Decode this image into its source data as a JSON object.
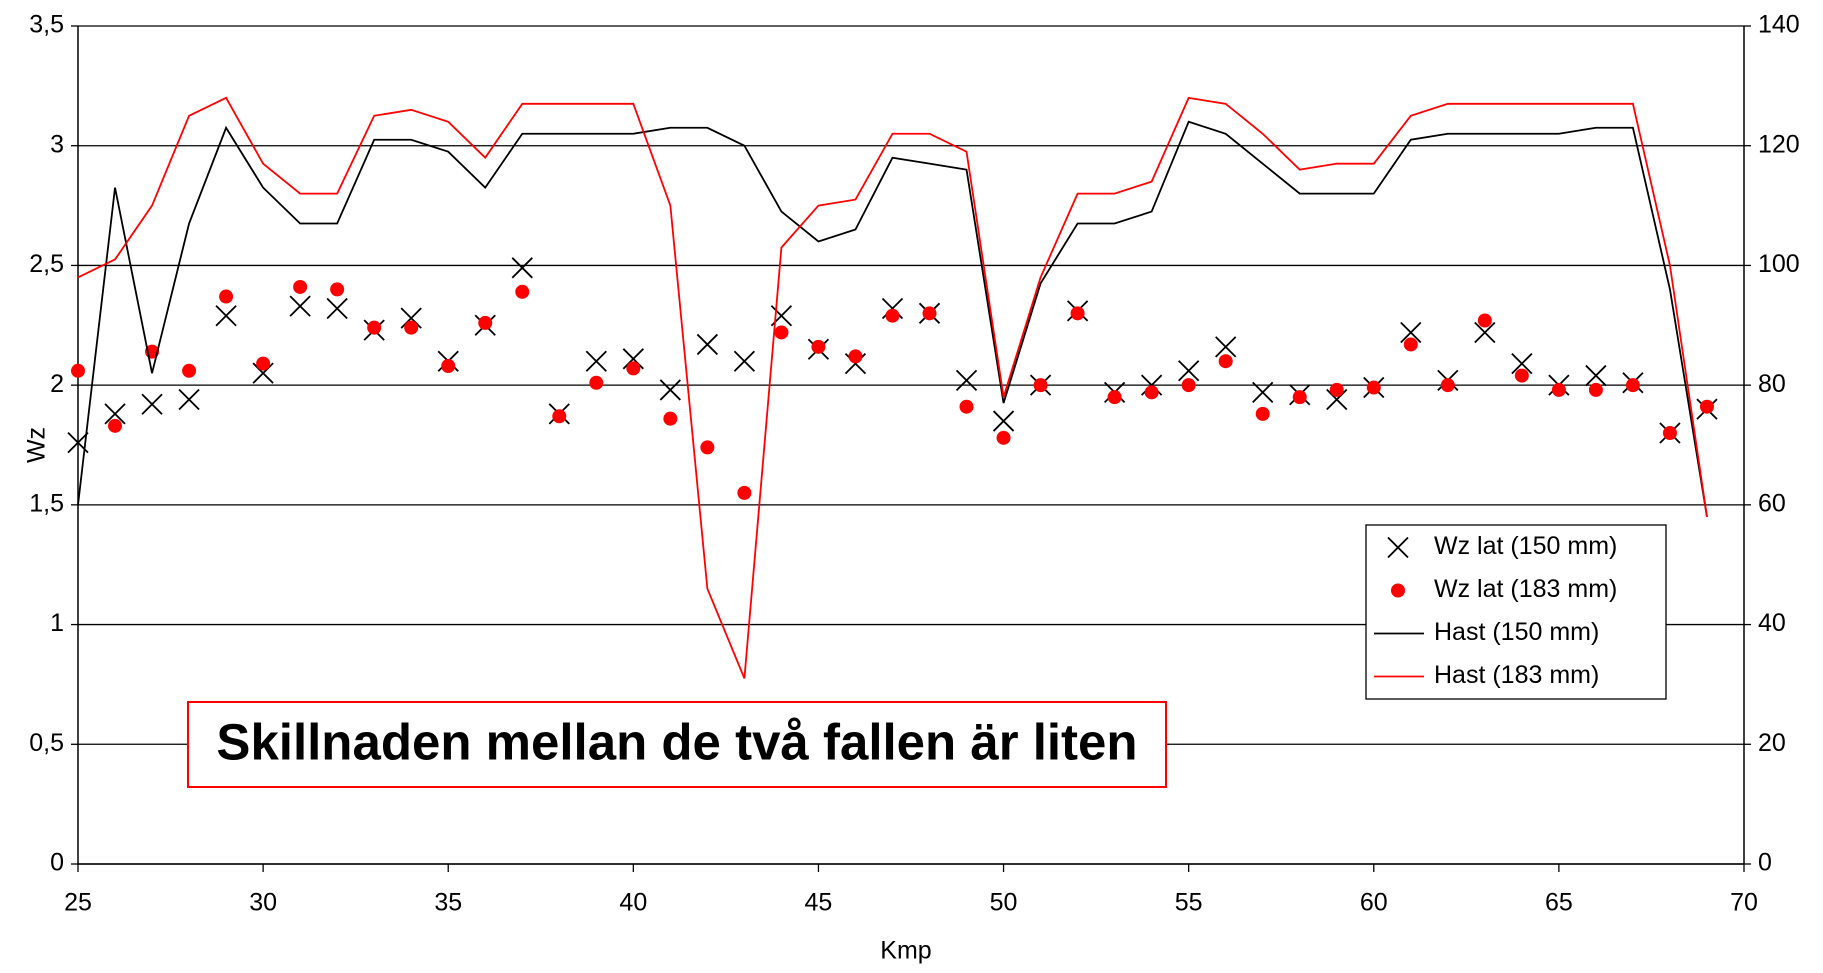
{
  "chart_data": {
    "type": "line",
    "annotation": "Skillnaden mellan de två fallen är liten",
    "xlabel": "Kmp",
    "ylabel": "Wz",
    "x": [
      25,
      26,
      27,
      28,
      29,
      30,
      31,
      32,
      33,
      34,
      35,
      36,
      37,
      38,
      39,
      40,
      41,
      42,
      43,
      44,
      45,
      46,
      47,
      48,
      49,
      50,
      51,
      52,
      53,
      54,
      55,
      56,
      57,
      58,
      59,
      60,
      61,
      62,
      63,
      64,
      65,
      66,
      67,
      68,
      69
    ],
    "series": [
      {
        "name": "Wz lat (150 mm)",
        "color": "#000000",
        "marker": "x",
        "values": [
          1.76,
          1.88,
          1.92,
          1.94,
          2.29,
          2.05,
          2.33,
          2.32,
          2.23,
          2.28,
          2.1,
          2.25,
          2.49,
          1.88,
          2.1,
          2.11,
          1.98,
          2.17,
          2.1,
          2.29,
          2.15,
          2.09,
          2.32,
          2.3,
          2.02,
          1.85,
          2.0,
          2.31,
          1.97,
          2.0,
          2.06,
          2.16,
          1.97,
          1.96,
          1.94,
          1.99,
          2.22,
          2.02,
          2.22,
          2.09,
          2.0,
          2.04,
          2.01,
          1.8,
          1.9
        ]
      },
      {
        "name": "Wz lat (183 mm)",
        "color": "#ff0000",
        "marker": "o",
        "values": [
          2.06,
          1.83,
          2.14,
          2.06,
          2.37,
          2.09,
          2.41,
          2.4,
          2.24,
          2.24,
          2.08,
          2.26,
          2.39,
          1.87,
          2.01,
          2.07,
          1.86,
          1.74,
          1.55,
          2.22,
          2.16,
          2.12,
          2.29,
          2.3,
          1.91,
          1.78,
          2.0,
          2.3,
          1.95,
          1.97,
          2.0,
          2.1,
          1.88,
          1.95,
          1.98,
          1.99,
          2.17,
          2.0,
          2.27,
          2.04,
          1.98,
          1.98,
          2.0,
          1.8,
          1.91
        ]
      },
      {
        "name": "Hast (150 mm)",
        "color": "#000000",
        "axis": "y2",
        "values": [
          60,
          113,
          82,
          107,
          123,
          113,
          107,
          107,
          121,
          121,
          119,
          113,
          122,
          122,
          122,
          122,
          123,
          123,
          120,
          109,
          104,
          106,
          118,
          117,
          116,
          77,
          97,
          107,
          107,
          109,
          124,
          122,
          117,
          112,
          112,
          112,
          121,
          122,
          122,
          122,
          122,
          123,
          123,
          96,
          58
        ]
      },
      {
        "name": "Hast (183 mm)",
        "color": "#ff0000",
        "axis": "y2",
        "values": [
          98,
          101,
          110,
          125,
          128,
          117,
          112,
          112,
          125,
          126,
          124,
          118,
          127,
          127,
          127,
          127,
          110,
          46,
          31,
          103,
          110,
          111,
          122,
          122,
          119,
          78,
          98,
          112,
          112,
          114,
          128,
          127,
          122,
          116,
          117,
          117,
          125,
          127,
          127,
          127,
          127,
          127,
          127,
          100,
          58
        ]
      }
    ],
    "xlim": [
      25,
      70
    ],
    "xticks": [
      25,
      30,
      35,
      40,
      45,
      50,
      55,
      60,
      65,
      70
    ],
    "ylim": [
      0,
      3.5
    ],
    "yticks": [
      0,
      {
        "value": 0.5,
        "label": "0,5"
      },
      1,
      {
        "value": 1.5,
        "label": "1,5"
      },
      2,
      {
        "value": 2.5,
        "label": "2,5"
      },
      3,
      {
        "value": 3.5,
        "label": "3,5"
      }
    ],
    "y2lim": [
      0,
      140
    ],
    "y2ticks": [
      0,
      20,
      40,
      60,
      80,
      100,
      120,
      140
    ],
    "grid": true,
    "legend": "right"
  }
}
